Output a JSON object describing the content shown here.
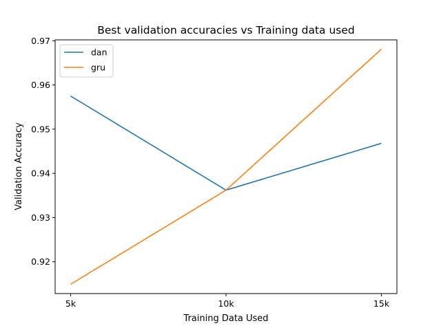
{
  "chart_data": {
    "type": "line",
    "title": "Best validation accuracies vs Training data used",
    "xlabel": "Training Data Used",
    "ylabel": "Validation Accuracy",
    "categories": [
      "5k",
      "10k",
      "15k"
    ],
    "series": [
      {
        "name": "dan",
        "color": "#1f77b4",
        "values": [
          0.9575,
          0.9362,
          0.9468
        ]
      },
      {
        "name": "gru",
        "color": "#ff7f0e",
        "values": [
          0.9149,
          0.9362,
          0.9681
        ]
      }
    ],
    "ylim": [
      0.9128,
      0.9702
    ],
    "yticks": [
      0.92,
      0.93,
      0.94,
      0.95,
      0.96,
      0.97
    ],
    "ytick_labels": [
      "0.92",
      "0.93",
      "0.94",
      "0.95",
      "0.96",
      "0.97"
    ],
    "grid": false,
    "legend_position": "top-left"
  }
}
